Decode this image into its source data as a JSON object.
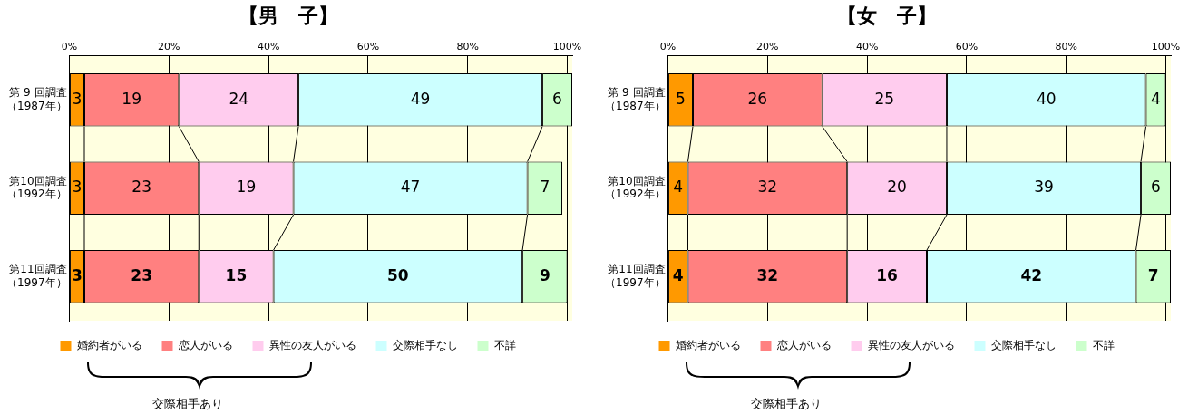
{
  "chart_data": [
    {
      "type": "bar",
      "title": "【男　子】",
      "orientation": "horizontal",
      "stacked": true,
      "categories": [
        "第 9 回調査（1987年）",
        "第10回調査（1992年）",
        "第11回調査（1997年）"
      ],
      "series": [
        {
          "name": "婚約者がいる",
          "color": "#ff9900",
          "values": [
            3,
            3,
            3
          ]
        },
        {
          "name": "恋人がいる",
          "color": "#ff8080",
          "values": [
            19,
            23,
            23
          ]
        },
        {
          "name": "異性の友人がいる",
          "color": "#ffccee",
          "values": [
            24,
            19,
            15
          ]
        },
        {
          "name": "交際相手なし",
          "color": "#ccffff",
          "values": [
            49,
            47,
            50
          ]
        },
        {
          "name": "不詳",
          "color": "#ccffcc",
          "values": [
            6,
            7,
            9
          ]
        }
      ],
      "xlim": [
        0,
        101
      ],
      "xticks": [
        {
          "value": 0,
          "label": "0%"
        },
        {
          "value": 20,
          "label": "20%"
        },
        {
          "value": 40,
          "label": "40%"
        },
        {
          "value": 60,
          "label": "60%"
        },
        {
          "value": 80,
          "label": "80%"
        },
        {
          "value": 100,
          "label": "100%"
        }
      ],
      "grid": "x",
      "legend": "bottom",
      "data_labels": true,
      "annotations": [
        "交際相手あり"
      ]
    },
    {
      "type": "bar",
      "title": "【女　子】",
      "orientation": "horizontal",
      "stacked": true,
      "categories": [
        "第 9 回調査（1987年）",
        "第10回調査（1992年）",
        "第11回調査（1997年）"
      ],
      "series": [
        {
          "name": "婚約者がいる",
          "color": "#ff9900",
          "values": [
            5,
            4,
            4
          ]
        },
        {
          "name": "恋人がいる",
          "color": "#ff8080",
          "values": [
            26,
            32,
            32
          ]
        },
        {
          "name": "異性の友人がいる",
          "color": "#ffccee",
          "values": [
            25,
            20,
            16
          ]
        },
        {
          "name": "交際相手なし",
          "color": "#ccffff",
          "values": [
            40,
            39,
            42
          ]
        },
        {
          "name": "不詳",
          "color": "#ccffcc",
          "values": [
            4,
            6,
            7
          ]
        }
      ],
      "xlim": [
        0,
        101
      ],
      "xticks": [
        {
          "value": 0,
          "label": "0%"
        },
        {
          "value": 20,
          "label": "20%"
        },
        {
          "value": 40,
          "label": "40%"
        },
        {
          "value": 60,
          "label": "60%"
        },
        {
          "value": 80,
          "label": "80%"
        },
        {
          "value": 100,
          "label": "100%"
        }
      ],
      "grid": "x",
      "legend": "bottom",
      "data_labels": true,
      "annotations": [
        "交際相手あり"
      ]
    }
  ]
}
